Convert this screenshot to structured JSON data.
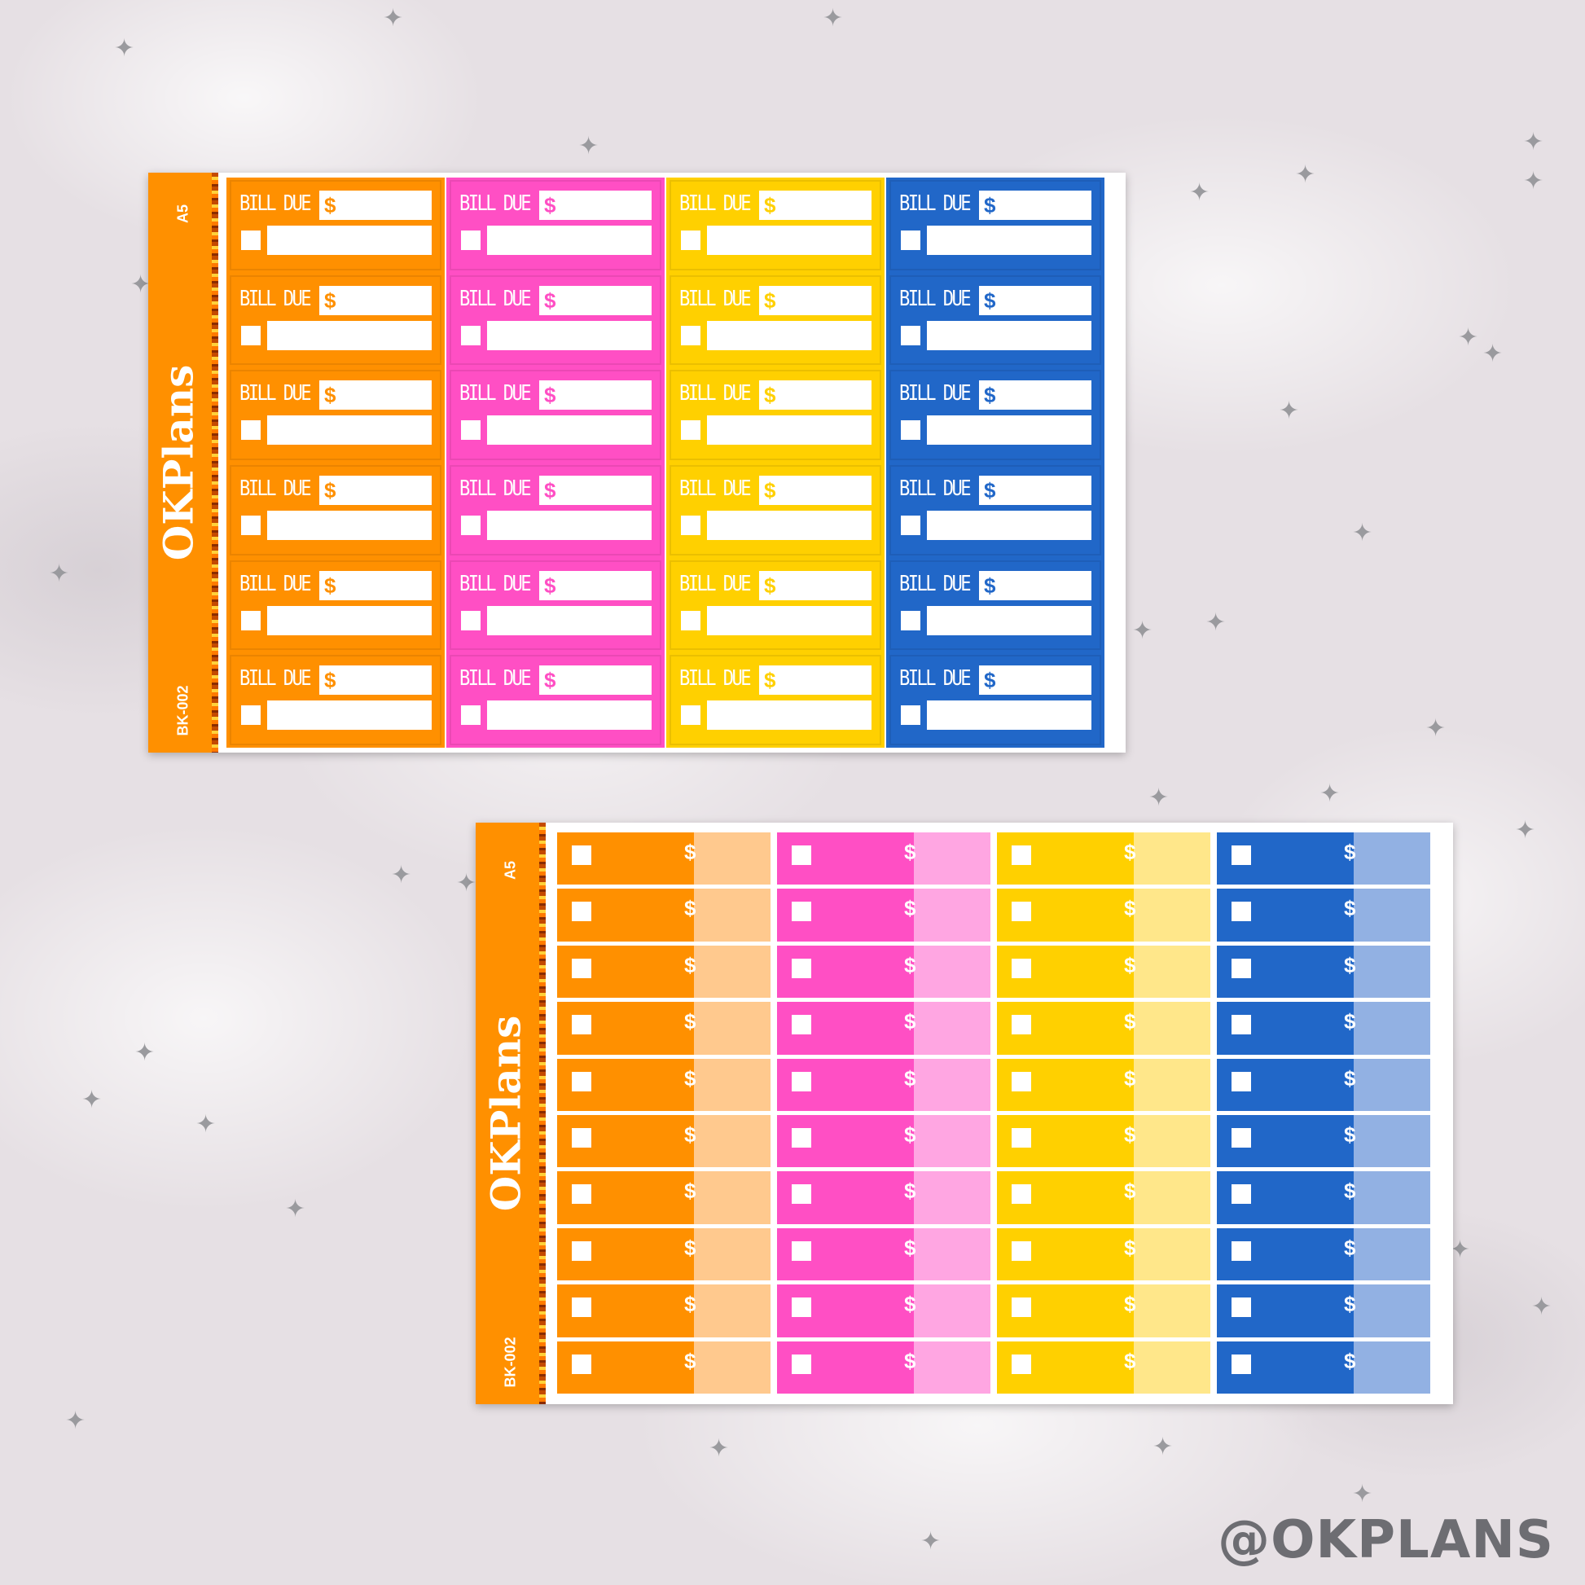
{
  "brand": "OKPlans",
  "size_label": "A5",
  "product_code": "BK-002",
  "watermark": "@OKPLANS",
  "bill_label": "BILL DUE",
  "currency_symbol": "$",
  "colors": {
    "orange": "#ff9000",
    "pink": "#ff4fc4",
    "yellow": "#ffd000",
    "blue": "#2167c8",
    "orange_light": "#ffc98e",
    "pink_light": "#ffa6e2",
    "yellow_light": "#ffe78a",
    "blue_light": "#92b1e3"
  },
  "sheet1_columns": [
    "orange",
    "pink",
    "yellow",
    "blue"
  ],
  "sheet1_rows": 6,
  "sheet2_columns": [
    "orange",
    "pink",
    "yellow",
    "blue"
  ],
  "sheet2_rows": 10,
  "icons": [
    "star-icon",
    "checkbox-icon"
  ]
}
